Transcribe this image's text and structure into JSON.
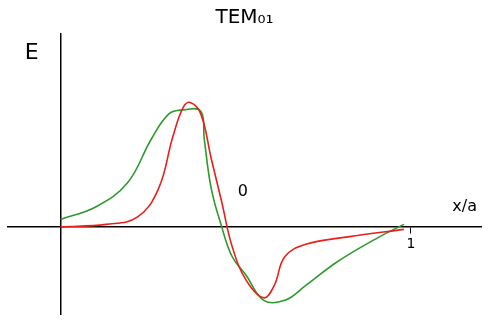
{
  "chart_data": {
    "type": "line",
    "title": "TEM₀₁",
    "x_label": "x/a",
    "y_label": "E",
    "xlim": [
      -0.15,
      1.2
    ],
    "xticks": [
      1
    ],
    "ylim": [
      -0.7,
      1.55
    ],
    "grid": false,
    "tick_labels": "x",
    "annotations": [
      {
        "text": "0",
        "x": 0.52,
        "y": 0.28
      }
    ],
    "series": [
      {
        "color": "#e8201c",
        "x": [
          0,
          0.13,
          0.22,
          0.28,
          0.32,
          0.35,
          0.37,
          0.4,
          0.43,
          0.46,
          0.49,
          0.53,
          0.58,
          0.61,
          0.64,
          0.7,
          0.82,
          0.98
        ],
        "values": [
          0,
          0.02,
          0.08,
          0.31,
          0.72,
          0.96,
          1.0,
          0.91,
          0.55,
          0.2,
          -0.16,
          -0.43,
          -0.57,
          -0.47,
          -0.24,
          -0.14,
          -0.08,
          -0.02
        ]
      },
      {
        "color": "#2e9a2e",
        "x": [
          0,
          0.1,
          0.19,
          0.26,
          0.31,
          0.35,
          0.4,
          0.41,
          0.43,
          0.46,
          0.49,
          0.53,
          0.58,
          0.64,
          0.7,
          0.79,
          0.91,
          0.98
        ],
        "values": [
          0.06,
          0.16,
          0.35,
          0.71,
          0.91,
          0.94,
          0.93,
          0.71,
          0.31,
          0,
          -0.24,
          -0.39,
          -0.59,
          -0.59,
          -0.47,
          -0.28,
          -0.08,
          0.02
        ]
      }
    ]
  }
}
